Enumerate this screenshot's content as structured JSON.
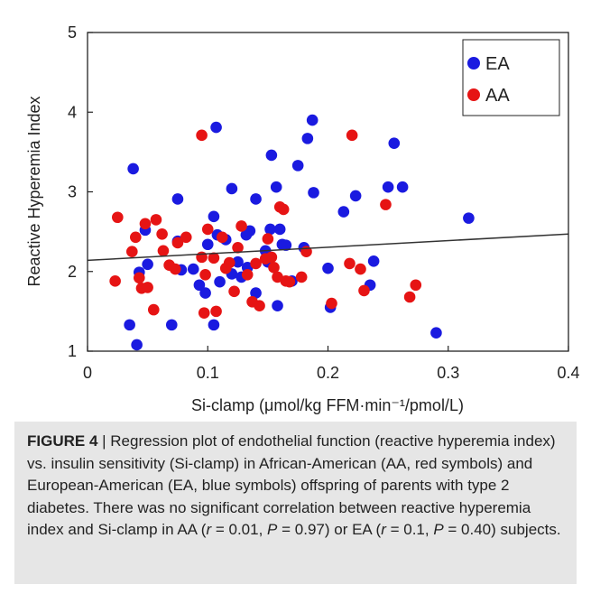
{
  "chart_data": {
    "type": "scatter",
    "title": "",
    "xlabel": "Si-clamp (μmol/kg FFM·min⁻¹/pmol/L)",
    "ylabel": "Reactive Hyperemia Index",
    "xlim": [
      0,
      0.4
    ],
    "ylim": [
      1,
      5
    ],
    "xticks": [
      "0",
      "0.1",
      "0.2",
      "0.3",
      "0.4"
    ],
    "yticks": [
      "1",
      "2",
      "3",
      "4",
      "5"
    ],
    "grid": false,
    "legend_position": "top-right",
    "colors": {
      "EA": "#1a1ae0",
      "AA": "#e61414",
      "line": "#333333"
    },
    "series": [
      {
        "name": "EA",
        "points": [
          [
            0.035,
            1.33
          ],
          [
            0.038,
            3.29
          ],
          [
            0.041,
            1.08
          ],
          [
            0.043,
            1.99
          ],
          [
            0.048,
            2.52
          ],
          [
            0.05,
            2.09
          ],
          [
            0.07,
            1.33
          ],
          [
            0.075,
            2.91
          ],
          [
            0.075,
            2.38
          ],
          [
            0.078,
            2.02
          ],
          [
            0.088,
            2.03
          ],
          [
            0.093,
            1.83
          ],
          [
            0.098,
            1.73
          ],
          [
            0.1,
            2.34
          ],
          [
            0.105,
            2.69
          ],
          [
            0.105,
            1.33
          ],
          [
            0.107,
            3.81
          ],
          [
            0.108,
            2.46
          ],
          [
            0.11,
            1.87
          ],
          [
            0.115,
            2.4
          ],
          [
            0.12,
            1.97
          ],
          [
            0.12,
            3.04
          ],
          [
            0.125,
            2.12
          ],
          [
            0.128,
            1.93
          ],
          [
            0.132,
            2.46
          ],
          [
            0.133,
            2.05
          ],
          [
            0.135,
            2.51
          ],
          [
            0.14,
            2.91
          ],
          [
            0.14,
            1.73
          ],
          [
            0.148,
            2.26
          ],
          [
            0.15,
            2.12
          ],
          [
            0.152,
            2.53
          ],
          [
            0.153,
            3.46
          ],
          [
            0.157,
            3.06
          ],
          [
            0.158,
            1.57
          ],
          [
            0.16,
            2.53
          ],
          [
            0.162,
            2.34
          ],
          [
            0.165,
            2.33
          ],
          [
            0.17,
            1.88
          ],
          [
            0.175,
            3.33
          ],
          [
            0.18,
            2.3
          ],
          [
            0.183,
            3.67
          ],
          [
            0.187,
            3.9
          ],
          [
            0.188,
            2.99
          ],
          [
            0.2,
            2.04
          ],
          [
            0.202,
            1.55
          ],
          [
            0.213,
            2.75
          ],
          [
            0.223,
            2.95
          ],
          [
            0.235,
            1.83
          ],
          [
            0.238,
            2.13
          ],
          [
            0.25,
            3.06
          ],
          [
            0.255,
            3.61
          ],
          [
            0.262,
            3.06
          ],
          [
            0.29,
            1.23
          ],
          [
            0.317,
            2.67
          ]
        ]
      },
      {
        "name": "AA",
        "points": [
          [
            0.023,
            1.88
          ],
          [
            0.025,
            2.68
          ],
          [
            0.037,
            2.25
          ],
          [
            0.04,
            2.43
          ],
          [
            0.043,
            1.92
          ],
          [
            0.045,
            1.79
          ],
          [
            0.048,
            2.6
          ],
          [
            0.05,
            1.8
          ],
          [
            0.055,
            1.52
          ],
          [
            0.057,
            2.65
          ],
          [
            0.062,
            2.47
          ],
          [
            0.063,
            2.26
          ],
          [
            0.068,
            2.08
          ],
          [
            0.073,
            2.03
          ],
          [
            0.075,
            2.36
          ],
          [
            0.082,
            2.43
          ],
          [
            0.095,
            3.71
          ],
          [
            0.095,
            2.18
          ],
          [
            0.097,
            1.48
          ],
          [
            0.098,
            1.96
          ],
          [
            0.1,
            2.53
          ],
          [
            0.105,
            2.17
          ],
          [
            0.107,
            1.5
          ],
          [
            0.112,
            2.43
          ],
          [
            0.115,
            2.04
          ],
          [
            0.118,
            2.11
          ],
          [
            0.122,
            1.75
          ],
          [
            0.125,
            2.3
          ],
          [
            0.128,
            2.57
          ],
          [
            0.133,
            1.96
          ],
          [
            0.137,
            1.62
          ],
          [
            0.14,
            2.1
          ],
          [
            0.143,
            1.57
          ],
          [
            0.148,
            2.16
          ],
          [
            0.15,
            2.41
          ],
          [
            0.153,
            2.18
          ],
          [
            0.155,
            2.05
          ],
          [
            0.158,
            1.93
          ],
          [
            0.16,
            2.81
          ],
          [
            0.163,
            2.78
          ],
          [
            0.165,
            1.88
          ],
          [
            0.168,
            1.87
          ],
          [
            0.178,
            1.93
          ],
          [
            0.182,
            2.25
          ],
          [
            0.203,
            1.6
          ],
          [
            0.218,
            2.1
          ],
          [
            0.22,
            3.71
          ],
          [
            0.227,
            2.03
          ],
          [
            0.23,
            1.76
          ],
          [
            0.248,
            2.84
          ],
          [
            0.268,
            1.68
          ],
          [
            0.273,
            1.83
          ]
        ]
      }
    ],
    "regression_line": {
      "x": [
        0,
        0.4
      ],
      "y": [
        2.14,
        2.47
      ]
    }
  },
  "caption": {
    "label": "FIGURE 4",
    "separator": " | ",
    "text_1": "Regression plot of endothelial function (reactive hyperemia index) vs. insulin sensitivity (Si-clamp) in African-American (AA, red symbols) and European-American (EA, blue symbols) offspring of parents with type 2 diabetes. There was no significant correlation between reactive hyperemia index and Si-clamp in AA (",
    "aa_r_sym": "r",
    "aa_r_val": " = 0.01, ",
    "aa_p_sym": "P",
    "aa_p_val": " = 0.97) or EA (",
    "ea_r_sym": "r",
    "ea_r_val": " = 0.1, ",
    "ea_p_sym": "P",
    "ea_p_val": " = 0.40) subjects."
  }
}
